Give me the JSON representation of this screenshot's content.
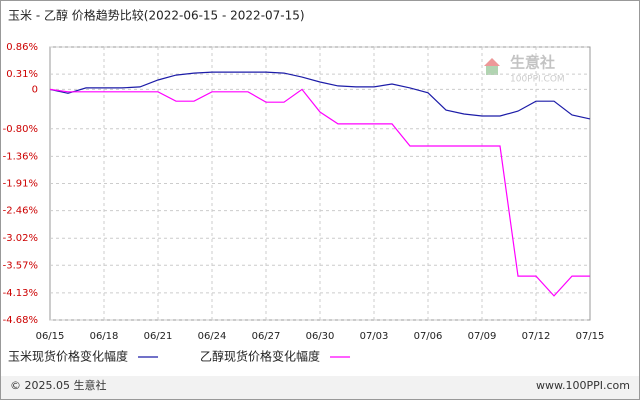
{
  "chart_data": {
    "type": "line",
    "title": "玉米 - 乙醇 价格趋势比较(2022-06-15 - 2022-07-15)",
    "watermark": "生意社",
    "watermark_url": "100PPI.COM",
    "footer_left": "© 2025.05 生意社",
    "footer_right": "www.100PPI.com",
    "categories": [
      "06/15",
      null,
      null,
      "06/18",
      null,
      null,
      "06/21",
      null,
      null,
      "06/24",
      null,
      null,
      "06/27",
      null,
      null,
      "06/30",
      null,
      null,
      "07/03",
      null,
      null,
      "07/06",
      null,
      null,
      "07/09",
      null,
      null,
      "07/12",
      null,
      null,
      "07/15"
    ],
    "ylim": [
      -4.68,
      0.86
    ],
    "yticks": [
      {
        "value": 0.86,
        "label": "0.86%"
      },
      {
        "value": 0.31,
        "label": "0.31%"
      },
      0,
      {
        "value": -0.8,
        "label": "-0.80%"
      },
      {
        "value": -1.36,
        "label": "-1.36%"
      },
      {
        "value": -1.91,
        "label": "-1.91%"
      },
      {
        "value": -2.46,
        "label": "-2.46%"
      },
      {
        "value": -3.02,
        "label": "-3.02%"
      },
      {
        "value": -3.57,
        "label": "-3.57%"
      },
      {
        "value": -4.13,
        "label": "-4.13%"
      },
      {
        "value": -4.68,
        "label": "-4.68%"
      }
    ],
    "grid": true,
    "series": [
      {
        "name": "玉米现货价格变化幅度",
        "color": "#1c1ca8",
        "values": [
          0,
          -0.08,
          0.03,
          0.03,
          0.03,
          0.05,
          0.19,
          0.29,
          0.33,
          0.35,
          0.35,
          0.35,
          0.35,
          0.33,
          0.25,
          0.15,
          0.07,
          0.05,
          0.05,
          0.11,
          0.03,
          -0.07,
          -0.42,
          -0.5,
          -0.54,
          -0.54,
          -0.44,
          -0.24,
          -0.24,
          -0.52,
          -0.6
        ]
      },
      {
        "name": "乙醇现货价格变化幅度",
        "color": "#ff00ff",
        "values": [
          0,
          -0.05,
          -0.05,
          -0.05,
          -0.05,
          -0.05,
          -0.05,
          -0.24,
          -0.24,
          -0.05,
          -0.05,
          -0.05,
          -0.26,
          -0.26,
          0,
          -0.46,
          -0.7,
          -0.7,
          -0.7,
          -0.7,
          -1.15,
          -1.15,
          -1.15,
          -1.15,
          -1.15,
          -1.15,
          -3.79,
          -3.79,
          -4.19,
          -3.79,
          -3.79
        ]
      }
    ]
  }
}
